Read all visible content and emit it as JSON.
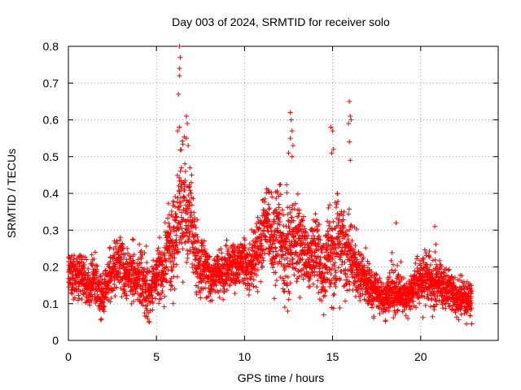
{
  "chart_data": {
    "type": "scatter",
    "title": "Day 003 of 2024, SRMTID for receiver solo",
    "xlabel": "GPS time / hours",
    "ylabel": "SRMTID / TECUs",
    "xlim": [
      0,
      24.4
    ],
    "ylim": [
      0,
      0.8
    ],
    "xticks": [
      0,
      5,
      10,
      15,
      20
    ],
    "yticks": [
      0,
      0.1,
      0.2,
      0.3,
      0.4,
      0.5,
      0.6,
      0.7,
      0.8
    ],
    "xtick_labels": [
      "0",
      "5",
      "10",
      "15",
      "20"
    ],
    "ytick_labels": [
      "0",
      "0.1",
      "0.2",
      "0.3",
      "0.4",
      "0.5",
      "0.6",
      "0.7",
      "0.8"
    ],
    "grid": true,
    "marker": "+",
    "color": "#ff0000",
    "series": [
      {
        "name": "SRMTID",
        "profile": {
          "x": [
            0.0,
            0.5,
            1.0,
            1.5,
            2.0,
            2.5,
            3.0,
            3.5,
            4.0,
            4.5,
            5.0,
            5.5,
            6.0,
            6.3,
            6.6,
            7.0,
            7.5,
            8.0,
            8.5,
            9.0,
            9.5,
            10.0,
            10.5,
            11.0,
            11.5,
            12.0,
            12.5,
            13.0,
            13.5,
            14.0,
            14.5,
            15.0,
            15.5,
            16.0,
            16.5,
            17.0,
            17.5,
            18.0,
            18.5,
            19.0,
            19.5,
            20.0,
            20.5,
            21.0,
            21.5,
            22.0,
            22.5,
            22.9
          ],
          "mean": [
            0.18,
            0.18,
            0.16,
            0.16,
            0.12,
            0.19,
            0.21,
            0.17,
            0.18,
            0.13,
            0.17,
            0.21,
            0.28,
            0.34,
            0.38,
            0.28,
            0.2,
            0.18,
            0.18,
            0.2,
            0.21,
            0.21,
            0.2,
            0.29,
            0.3,
            0.28,
            0.24,
            0.29,
            0.22,
            0.24,
            0.19,
            0.25,
            0.27,
            0.22,
            0.19,
            0.15,
            0.13,
            0.12,
            0.14,
            0.12,
            0.13,
            0.17,
            0.17,
            0.15,
            0.14,
            0.12,
            0.11,
            0.12
          ],
          "spread": [
            0.05,
            0.05,
            0.05,
            0.05,
            0.05,
            0.06,
            0.06,
            0.05,
            0.06,
            0.07,
            0.05,
            0.07,
            0.11,
            0.13,
            0.12,
            0.09,
            0.06,
            0.05,
            0.05,
            0.05,
            0.05,
            0.05,
            0.06,
            0.08,
            0.09,
            0.11,
            0.1,
            0.09,
            0.07,
            0.08,
            0.07,
            0.1,
            0.11,
            0.08,
            0.06,
            0.05,
            0.04,
            0.04,
            0.06,
            0.04,
            0.04,
            0.06,
            0.06,
            0.05,
            0.05,
            0.04,
            0.04,
            0.04
          ]
        },
        "peaks": [
          [
            6.3,
            0.8
          ],
          [
            6.35,
            0.77
          ],
          [
            6.3,
            0.74
          ],
          [
            6.3,
            0.72
          ],
          [
            6.25,
            0.67
          ],
          [
            6.2,
            0.57
          ],
          [
            6.3,
            0.58
          ],
          [
            6.7,
            0.61
          ],
          [
            6.75,
            0.59
          ],
          [
            6.7,
            0.55
          ],
          [
            6.8,
            0.53
          ],
          [
            6.9,
            0.47
          ],
          [
            7.0,
            0.45
          ],
          [
            12.6,
            0.62
          ],
          [
            12.65,
            0.6
          ],
          [
            12.7,
            0.57
          ],
          [
            12.6,
            0.55
          ],
          [
            12.75,
            0.53
          ],
          [
            12.7,
            0.5
          ],
          [
            12.5,
            0.51
          ],
          [
            14.9,
            0.58
          ],
          [
            15.0,
            0.57
          ],
          [
            14.95,
            0.51
          ],
          [
            15.05,
            0.52
          ],
          [
            15.95,
            0.65
          ],
          [
            16.0,
            0.61
          ],
          [
            15.9,
            0.59
          ],
          [
            16.05,
            0.6
          ],
          [
            15.95,
            0.54
          ],
          [
            16.0,
            0.49
          ],
          [
            17.0,
            0.1
          ],
          [
            18.2,
            0.08
          ],
          [
            4.5,
            0.06
          ],
          [
            4.6,
            0.05
          ],
          [
            20.8,
            0.31
          ],
          [
            18.6,
            0.32
          ]
        ]
      }
    ]
  }
}
